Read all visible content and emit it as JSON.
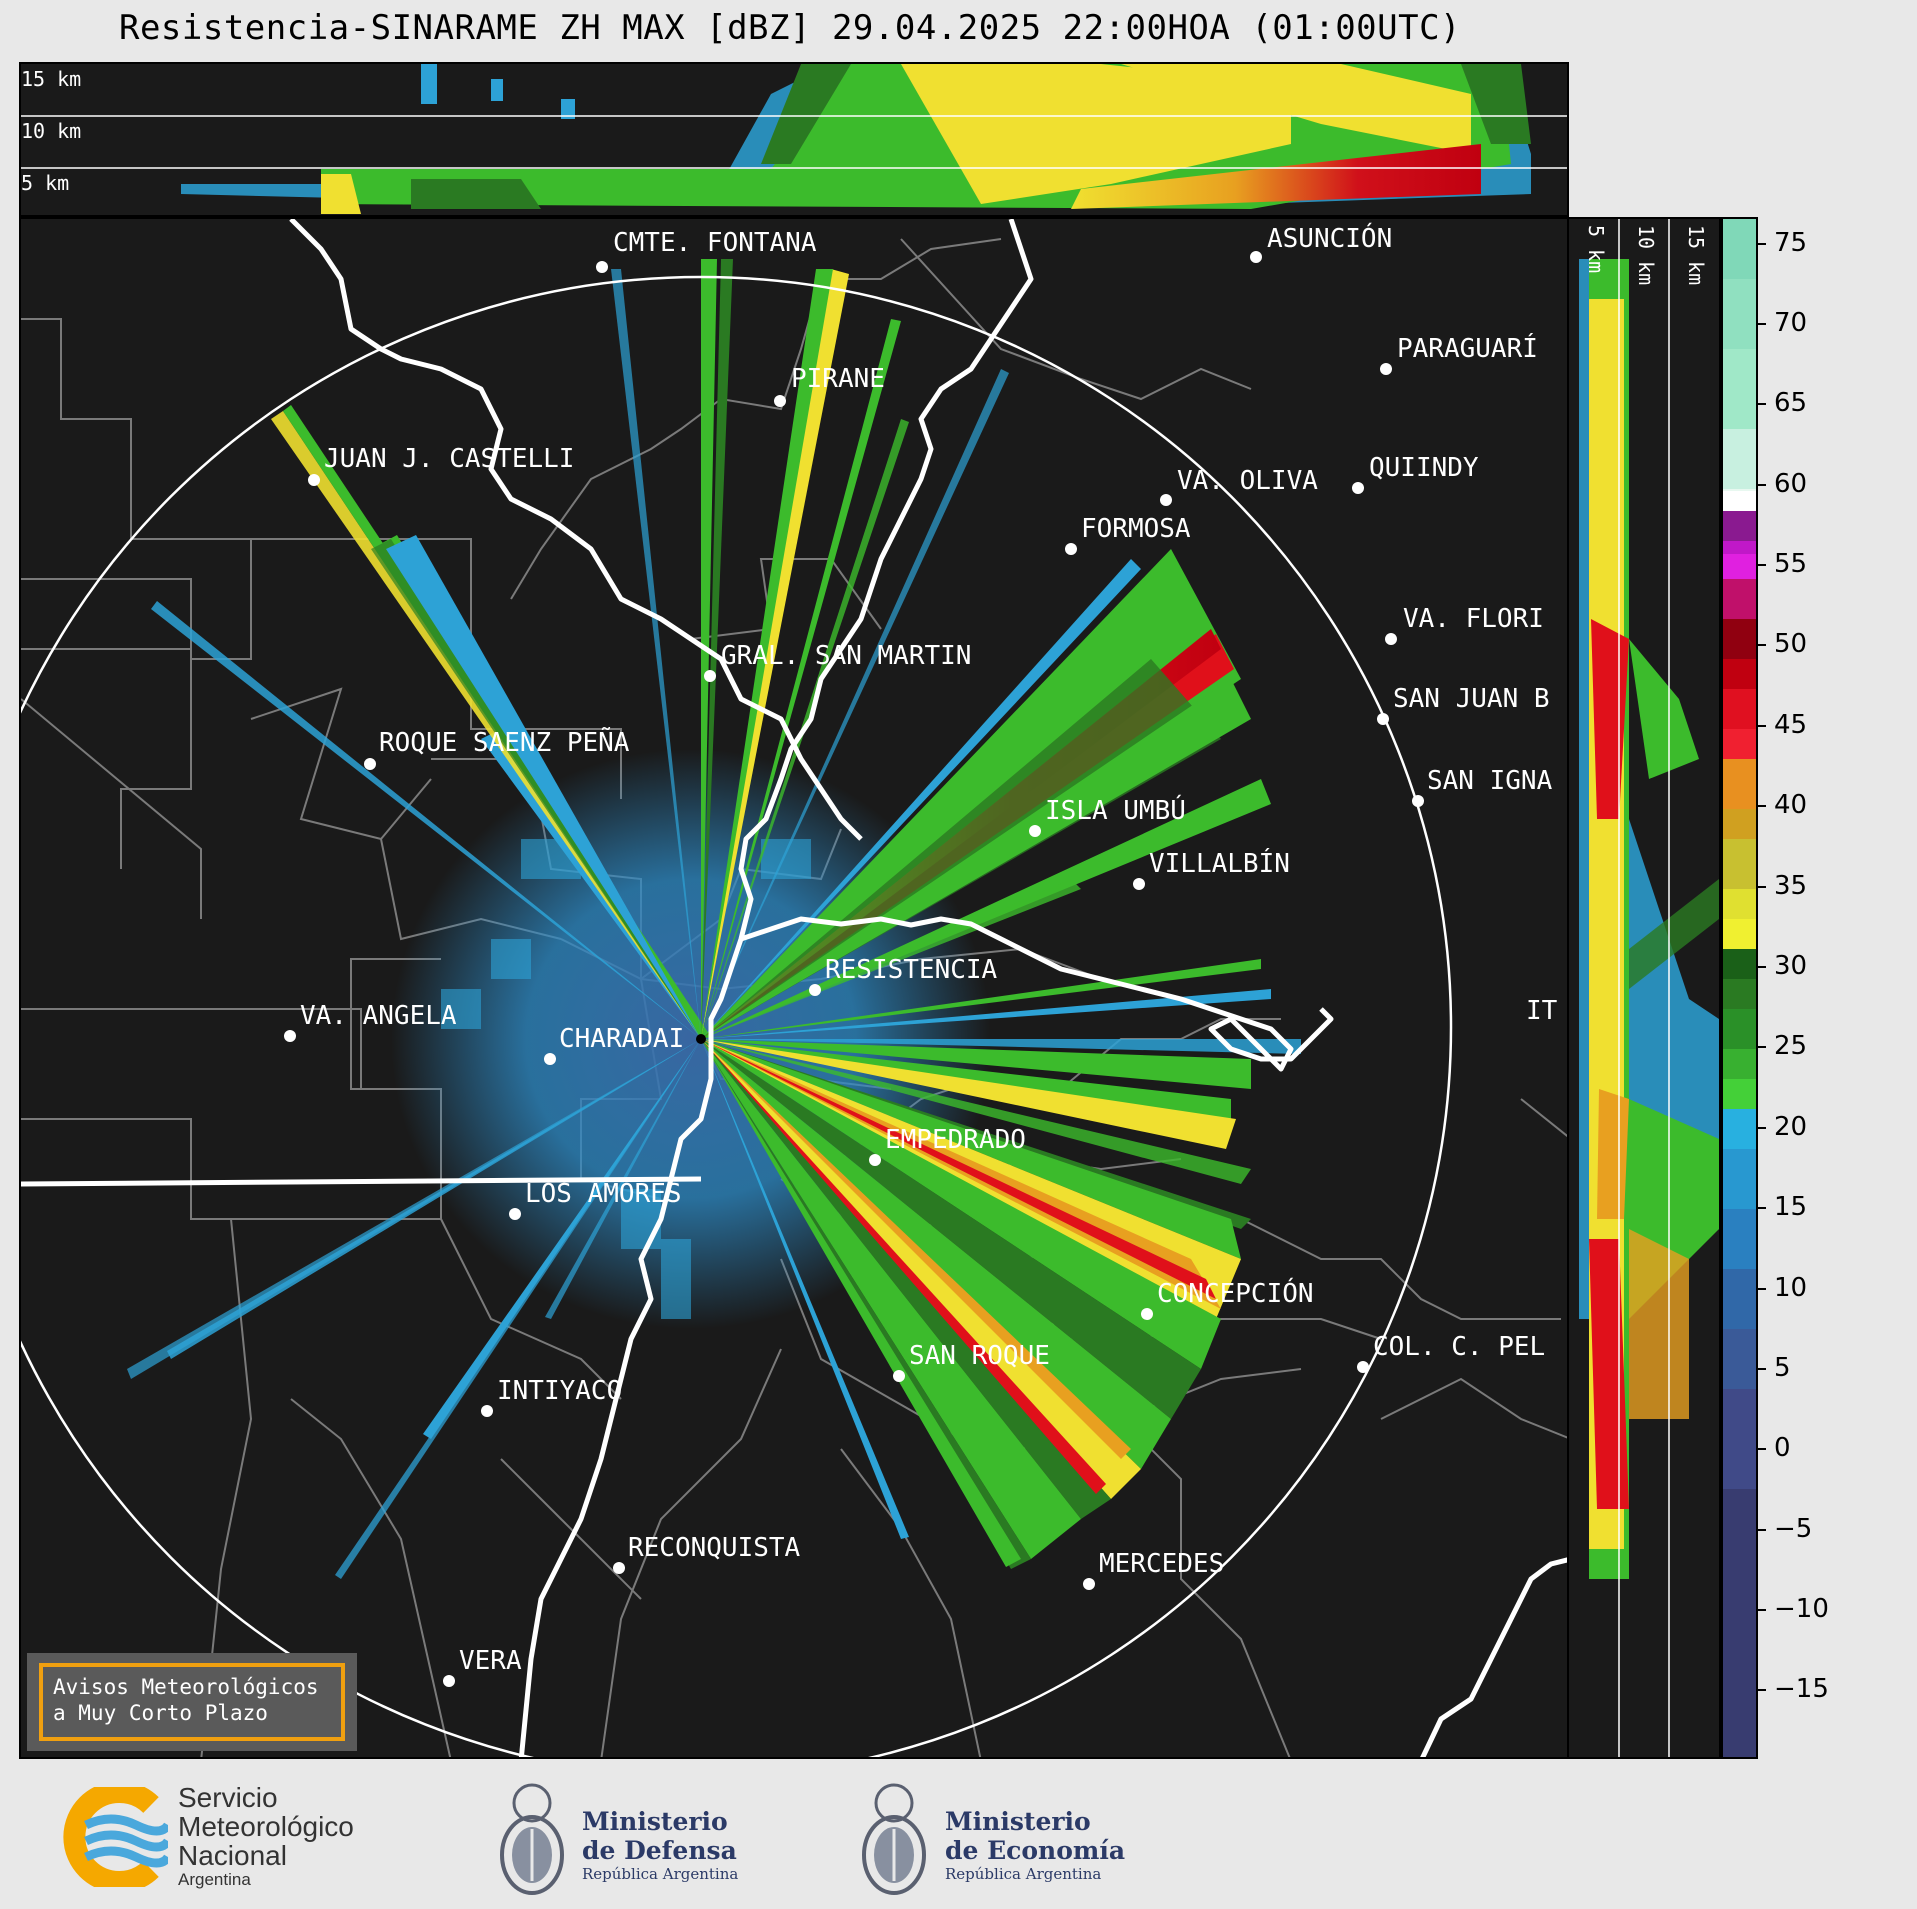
{
  "title": "Resistencia-SINARAME ZH MAX [dBZ] 29.04.2025 22:00HOA (01:00UTC)",
  "top_panel": {
    "height_labels": [
      "15 km",
      "10 km",
      "5 km"
    ]
  },
  "side_panel": {
    "height_labels": [
      "5 km",
      "10 km",
      "15 km"
    ]
  },
  "colorbar": {
    "unit": "dBZ",
    "ticks": [
      "75",
      "70",
      "65",
      "60",
      "55",
      "50",
      "45",
      "40",
      "35",
      "30",
      "25",
      "20",
      "15",
      "10",
      "5",
      "0",
      "−5",
      "−10",
      "−15"
    ]
  },
  "cities": [
    {
      "name": "CMTE. FONTANA"
    },
    {
      "name": "ASUNCIÓN"
    },
    {
      "name": "PARAGUARÍ"
    },
    {
      "name": "PIRANE"
    },
    {
      "name": "JUAN J. CASTELLI"
    },
    {
      "name": "VA. OLIVA"
    },
    {
      "name": "QUIINDY"
    },
    {
      "name": "FORMOSA"
    },
    {
      "name": "VA. FLORI"
    },
    {
      "name": "GRAL. SAN MARTIN"
    },
    {
      "name": "SAN JUAN B"
    },
    {
      "name": "ROQUE SAENZ PEÑA"
    },
    {
      "name": "SAN IGNA"
    },
    {
      "name": "ISLA UMBÚ"
    },
    {
      "name": "VILLALBÍN"
    },
    {
      "name": "RESISTENCIA"
    },
    {
      "name": "VA. ANGELA"
    },
    {
      "name": "CHARADAI"
    },
    {
      "name": "IT"
    },
    {
      "name": "EMPEDRADO"
    },
    {
      "name": "LOS AMORES"
    },
    {
      "name": "CONCEPCIÓN"
    },
    {
      "name": "COL. C. PEL"
    },
    {
      "name": "SAN ROQUE"
    },
    {
      "name": "INTIYACO"
    },
    {
      "name": "RECONQUISTA"
    },
    {
      "name": "MERCEDES"
    },
    {
      "name": "VERA"
    }
  ],
  "warning_box": {
    "line1": "Avisos Meteorológicos",
    "line2": "a Muy Corto Plazo"
  },
  "footer": {
    "smn": {
      "line1": "Servicio",
      "line2": "Meteorológico",
      "line3": "Nacional",
      "line4": "Argentina"
    },
    "defensa": {
      "line1": "Ministerio",
      "line2": "de Defensa",
      "line3": "República Argentina"
    },
    "economia": {
      "line1": "Ministerio",
      "line2": "de Economía",
      "line3": "República Argentina"
    }
  }
}
